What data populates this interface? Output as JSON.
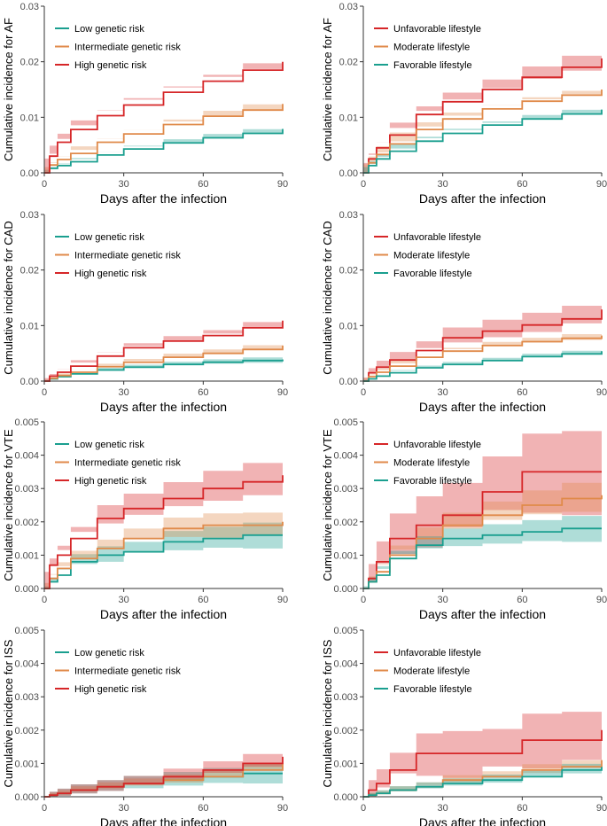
{
  "colors": {
    "low": "#1a9f8f",
    "intermediate": "#e08a4a",
    "high": "#d62628"
  },
  "chart_data": [
    {
      "type": "line",
      "panel": "genetic-AF",
      "xlabel": "Days after the infection",
      "ylabel": "Cumulative incidence for AF",
      "xlim": [
        0,
        90
      ],
      "ylim": [
        0,
        0.03
      ],
      "xticks": [
        0,
        30,
        60,
        90
      ],
      "yticks": [
        "0.00",
        "0.01",
        "0.02",
        "0.03"
      ],
      "ytick_values": [
        0,
        0.01,
        0.02,
        0.03
      ],
      "grid": false,
      "legend_position": "top-left",
      "series": [
        {
          "name": "Low genetic risk",
          "color": "#1a9f8f",
          "x": [
            0,
            2,
            5,
            10,
            20,
            30,
            45,
            60,
            75,
            90
          ],
          "values": [
            0,
            0.0008,
            0.0013,
            0.002,
            0.0032,
            0.0043,
            0.0054,
            0.0063,
            0.0071,
            0.0079
          ],
          "band": 0.0008
        },
        {
          "name": "Intermediate genetic risk",
          "color": "#e08a4a",
          "x": [
            0,
            2,
            5,
            10,
            20,
            30,
            45,
            60,
            75,
            90
          ],
          "values": [
            0,
            0.0014,
            0.0024,
            0.0035,
            0.0055,
            0.007,
            0.0087,
            0.0102,
            0.0113,
            0.0124
          ],
          "band": 0.0011
        },
        {
          "name": "High genetic risk",
          "color": "#d62628",
          "x": [
            0,
            2,
            5,
            10,
            20,
            30,
            45,
            60,
            75,
            90
          ],
          "values": [
            0,
            0.003,
            0.0055,
            0.0078,
            0.0103,
            0.0122,
            0.0145,
            0.0165,
            0.0185,
            0.02
          ],
          "band": 0.0013
        }
      ]
    },
    {
      "type": "line",
      "panel": "lifestyle-AF",
      "xlabel": "Days after the infection",
      "ylabel": "Cumulative incidence for AF",
      "xlim": [
        0,
        90
      ],
      "ylim": [
        0,
        0.03
      ],
      "xticks": [
        0,
        30,
        60,
        90
      ],
      "yticks": [
        "0.00",
        "0.01",
        "0.02",
        "0.03"
      ],
      "ytick_values": [
        0,
        0.01,
        0.02,
        0.03
      ],
      "grid": false,
      "legend_position": "top-right",
      "series": [
        {
          "name": "Unfavorable lifestyle",
          "color": "#d62628",
          "x": [
            0,
            2,
            5,
            10,
            20,
            30,
            45,
            60,
            75,
            90
          ],
          "values": [
            0,
            0.0025,
            0.0045,
            0.0068,
            0.0105,
            0.0128,
            0.015,
            0.0172,
            0.019,
            0.0206
          ],
          "band": 0.0022
        },
        {
          "name": "Moderate lifestyle",
          "color": "#e08a4a",
          "x": [
            0,
            2,
            5,
            10,
            20,
            30,
            45,
            60,
            75,
            90
          ],
          "values": [
            0,
            0.0018,
            0.0033,
            0.0052,
            0.0078,
            0.0097,
            0.0115,
            0.0129,
            0.014,
            0.015
          ],
          "band": 0.0008
        },
        {
          "name": "Favorable lifestyle",
          "color": "#1a9f8f",
          "x": [
            0,
            2,
            5,
            10,
            20,
            30,
            45,
            60,
            75,
            90
          ],
          "values": [
            0,
            0.0013,
            0.0025,
            0.0039,
            0.0057,
            0.0071,
            0.0086,
            0.0097,
            0.0106,
            0.0114
          ],
          "band": 0.0008
        }
      ]
    },
    {
      "type": "line",
      "panel": "genetic-CAD",
      "xlabel": "Days after the infection",
      "ylabel": "Cumulative incidence for CAD",
      "xlim": [
        0,
        90
      ],
      "ylim": [
        0,
        0.03
      ],
      "xticks": [
        0,
        30,
        60,
        90
      ],
      "yticks": [
        "0.00",
        "0.01",
        "0.02",
        "0.03"
      ],
      "ytick_values": [
        0,
        0.01,
        0.02,
        0.03
      ],
      "grid": false,
      "legend_position": "top-left",
      "series": [
        {
          "name": "Low genetic risk",
          "color": "#1a9f8f",
          "x": [
            0,
            2,
            5,
            10,
            20,
            30,
            45,
            60,
            75,
            90
          ],
          "values": [
            0,
            0.0004,
            0.0008,
            0.0013,
            0.002,
            0.0025,
            0.003,
            0.0034,
            0.0037,
            0.0039
          ],
          "band": 0.0006
        },
        {
          "name": "Intermediate genetic risk",
          "color": "#e08a4a",
          "x": [
            0,
            2,
            5,
            10,
            20,
            30,
            45,
            60,
            75,
            90
          ],
          "values": [
            0,
            0.0005,
            0.001,
            0.0016,
            0.0026,
            0.0034,
            0.0043,
            0.005,
            0.0057,
            0.0064
          ],
          "band": 0.0008
        },
        {
          "name": "High genetic risk",
          "color": "#d62628",
          "x": [
            0,
            2,
            5,
            10,
            20,
            30,
            45,
            60,
            75,
            90
          ],
          "values": [
            0,
            0.0009,
            0.0016,
            0.0027,
            0.0045,
            0.006,
            0.0072,
            0.0082,
            0.0096,
            0.0109
          ],
          "band": 0.0011
        }
      ]
    },
    {
      "type": "line",
      "panel": "lifestyle-CAD",
      "xlabel": "Days after the infection",
      "ylabel": "Cumulative incidence for CAD",
      "xlim": [
        0,
        90
      ],
      "ylim": [
        0,
        0.03
      ],
      "xticks": [
        0,
        30,
        60,
        90
      ],
      "yticks": [
        "0.00",
        "0.01",
        "0.02",
        "0.03"
      ],
      "ytick_values": [
        0,
        0.01,
        0.02,
        0.03
      ],
      "grid": false,
      "legend_position": "top-right",
      "series": [
        {
          "name": "Unfavorable lifestyle",
          "color": "#d62628",
          "x": [
            0,
            2,
            5,
            10,
            20,
            30,
            45,
            60,
            75,
            90
          ],
          "values": [
            0,
            0.0015,
            0.0025,
            0.0038,
            0.0055,
            0.0078,
            0.009,
            0.0101,
            0.0112,
            0.0129
          ],
          "band": 0.0025
        },
        {
          "name": "Moderate lifestyle",
          "color": "#e08a4a",
          "x": [
            0,
            2,
            5,
            10,
            20,
            30,
            45,
            60,
            75,
            90
          ],
          "values": [
            0,
            0.0008,
            0.0016,
            0.0027,
            0.0043,
            0.0054,
            0.0064,
            0.0071,
            0.0077,
            0.0082
          ],
          "band": 0.0008
        },
        {
          "name": "Favorable lifestyle",
          "color": "#1a9f8f",
          "x": [
            0,
            2,
            5,
            10,
            20,
            30,
            45,
            60,
            75,
            90
          ],
          "values": [
            0,
            0.0004,
            0.0009,
            0.0015,
            0.0024,
            0.003,
            0.0037,
            0.0044,
            0.0049,
            0.0054
          ],
          "band": 0.0006
        }
      ]
    },
    {
      "type": "line",
      "panel": "genetic-VTE",
      "xlabel": "Days after the infection",
      "ylabel": "Cumulative incidence for VTE",
      "xlim": [
        0,
        90
      ],
      "ylim": [
        0,
        0.005
      ],
      "xticks": [
        0,
        30,
        60,
        90
      ],
      "yticks": [
        "0.000",
        "0.001",
        "0.002",
        "0.003",
        "0.004",
        "0.005"
      ],
      "ytick_values": [
        0,
        0.001,
        0.002,
        0.003,
        0.004,
        0.005
      ],
      "grid": false,
      "legend_position": "top-left",
      "series": [
        {
          "name": "Low genetic risk",
          "color": "#1a9f8f",
          "x": [
            0,
            2,
            5,
            10,
            20,
            30,
            45,
            60,
            75,
            90
          ],
          "values": [
            0,
            0.0002,
            0.0004,
            0.0008,
            0.001,
            0.0011,
            0.0014,
            0.0015,
            0.0016,
            0.0016
          ],
          "band": 0.0004
        },
        {
          "name": "Intermediate genetic risk",
          "color": "#e08a4a",
          "x": [
            0,
            2,
            5,
            10,
            20,
            30,
            45,
            60,
            75,
            90
          ],
          "values": [
            0,
            0.0003,
            0.0006,
            0.0009,
            0.0012,
            0.0015,
            0.0018,
            0.0019,
            0.0019,
            0.002
          ],
          "band": 0.0004
        },
        {
          "name": "High genetic risk",
          "color": "#d62628",
          "x": [
            0,
            2,
            5,
            10,
            20,
            30,
            45,
            60,
            75,
            90
          ],
          "values": [
            0,
            0.0007,
            0.001,
            0.0015,
            0.0021,
            0.0024,
            0.0027,
            0.003,
            0.0032,
            0.0034
          ],
          "band": 0.0006
        }
      ]
    },
    {
      "type": "line",
      "panel": "lifestyle-VTE",
      "xlabel": "Days after the infection",
      "ylabel": "Cumulative incidence for VTE",
      "xlim": [
        0,
        90
      ],
      "ylim": [
        0,
        0.005
      ],
      "xticks": [
        0,
        30,
        60,
        90
      ],
      "yticks": [
        "0.000",
        "0.001",
        "0.002",
        "0.003",
        "0.004",
        "0.005"
      ],
      "ytick_values": [
        0,
        0.001,
        0.002,
        0.003,
        0.004,
        0.005
      ],
      "grid": false,
      "legend_position": "top-right",
      "series": [
        {
          "name": "Unfavorable lifestyle",
          "color": "#d62628",
          "x": [
            0,
            2,
            5,
            10,
            20,
            30,
            45,
            60,
            75,
            90
          ],
          "values": [
            0,
            0.0003,
            0.0008,
            0.0015,
            0.0019,
            0.0022,
            0.0029,
            0.0035,
            0.0035,
            0.0035
          ],
          "band": 0.0013
        },
        {
          "name": "Moderate lifestyle",
          "color": "#e08a4a",
          "x": [
            0,
            2,
            5,
            10,
            20,
            30,
            45,
            60,
            75,
            90
          ],
          "values": [
            0,
            0.0002,
            0.0005,
            0.001,
            0.0015,
            0.0019,
            0.0022,
            0.0025,
            0.0027,
            0.0028
          ],
          "band": 0.0005
        },
        {
          "name": "Favorable lifestyle",
          "color": "#1a9f8f",
          "x": [
            0,
            2,
            5,
            10,
            20,
            30,
            45,
            60,
            75,
            90
          ],
          "values": [
            0,
            0.0002,
            0.0004,
            0.0009,
            0.0013,
            0.0015,
            0.0016,
            0.0017,
            0.0018,
            0.0018
          ],
          "band": 0.0004
        }
      ]
    },
    {
      "type": "line",
      "panel": "genetic-ISS",
      "xlabel": "Days after the infection",
      "ylabel": "Cumulative incidence for ISS",
      "xlim": [
        0,
        90
      ],
      "ylim": [
        0,
        0.005
      ],
      "xticks": [
        0,
        30,
        60,
        90
      ],
      "yticks": [
        "0.000",
        "0.001",
        "0.002",
        "0.003",
        "0.004",
        "0.005"
      ],
      "ytick_values": [
        0,
        0.001,
        0.002,
        0.003,
        0.004,
        0.005
      ],
      "grid": false,
      "legend_position": "top-left",
      "series": [
        {
          "name": "Low genetic risk",
          "color": "#1a9f8f",
          "x": [
            0,
            2,
            5,
            10,
            20,
            30,
            45,
            60,
            75,
            90
          ],
          "values": [
            0,
            5e-05,
            0.0001,
            0.0002,
            0.0003,
            0.0004,
            0.0005,
            0.0006,
            0.0007,
            0.0007
          ],
          "band": 0.0003
        },
        {
          "name": "Intermediate genetic risk",
          "color": "#e08a4a",
          "x": [
            0,
            2,
            5,
            10,
            20,
            30,
            45,
            60,
            75,
            90
          ],
          "values": [
            0,
            5e-05,
            0.0001,
            0.0002,
            0.0003,
            0.0004,
            0.0005,
            0.0006,
            0.0008,
            0.001
          ],
          "band": 0.0002
        },
        {
          "name": "High genetic risk",
          "color": "#d62628",
          "x": [
            0,
            2,
            5,
            10,
            20,
            30,
            45,
            60,
            75,
            90
          ],
          "values": [
            0,
            5e-05,
            0.0001,
            0.0002,
            0.0003,
            0.0004,
            0.0006,
            0.0008,
            0.001,
            0.0012
          ],
          "band": 0.0003
        }
      ]
    },
    {
      "type": "line",
      "panel": "lifestyle-ISS",
      "xlabel": "Days after the infection",
      "ylabel": "Cumulative incidence for ISS",
      "xlim": [
        0,
        90
      ],
      "ylim": [
        0,
        0.005
      ],
      "xticks": [
        0,
        30,
        60,
        90
      ],
      "yticks": [
        "0.000",
        "0.001",
        "0.002",
        "0.003",
        "0.004",
        "0.005"
      ],
      "ytick_values": [
        0,
        0.001,
        0.002,
        0.003,
        0.004,
        0.005
      ],
      "grid": false,
      "legend_position": "top-right",
      "series": [
        {
          "name": "Unfavorable lifestyle",
          "color": "#d62628",
          "x": [
            0,
            2,
            5,
            10,
            20,
            30,
            45,
            60,
            75,
            90
          ],
          "values": [
            0,
            0.0002,
            0.0004,
            0.0008,
            0.0013,
            0.0013,
            0.0013,
            0.0017,
            0.0017,
            0.002
          ],
          "band": 0.0009
        },
        {
          "name": "Moderate lifestyle",
          "color": "#e08a4a",
          "x": [
            0,
            2,
            5,
            10,
            20,
            30,
            45,
            60,
            75,
            90
          ],
          "values": [
            0,
            5e-05,
            0.0001,
            0.0002,
            0.0003,
            0.0005,
            0.0006,
            0.0008,
            0.0009,
            0.0011
          ],
          "band": 0.0002
        },
        {
          "name": "Favorable lifestyle",
          "color": "#1a9f8f",
          "x": [
            0,
            2,
            5,
            10,
            20,
            30,
            45,
            60,
            75,
            90
          ],
          "values": [
            0,
            5e-05,
            0.0001,
            0.0002,
            0.0003,
            0.0004,
            0.0005,
            0.0006,
            0.0008,
            0.0009
          ],
          "band": 0.0002
        }
      ]
    }
  ]
}
